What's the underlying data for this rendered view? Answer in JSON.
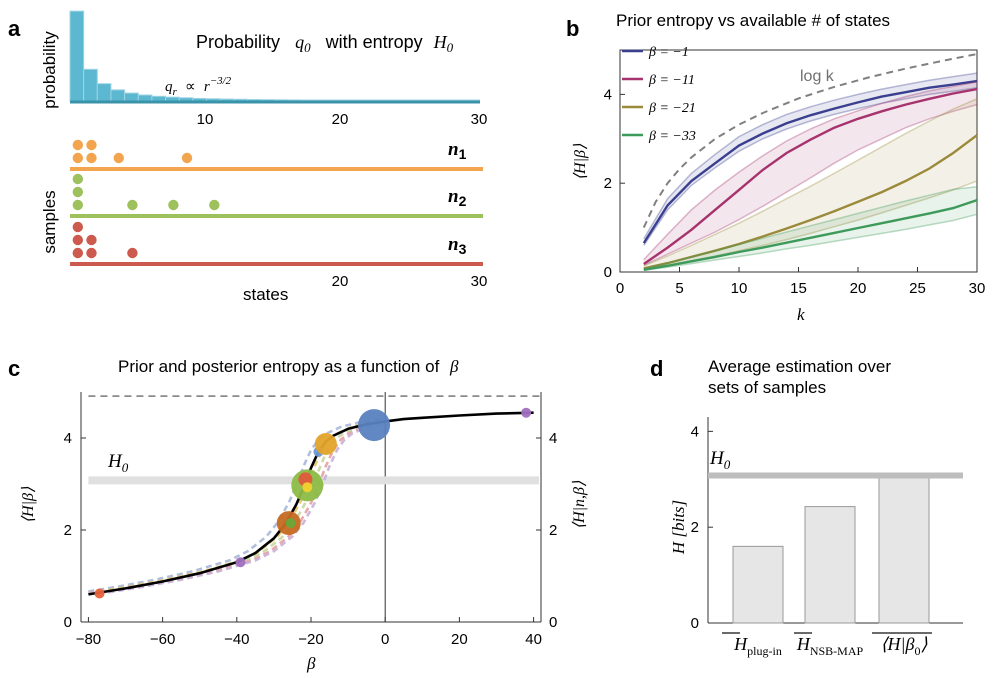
{
  "panel_labels": {
    "a": "a",
    "b": "b",
    "c": "c",
    "d": "d"
  },
  "chart_data": [
    {
      "panel": "a",
      "type": "bar",
      "title_text": "Probability",
      "title_q": "q",
      "title_q_sub": "0",
      "title_mid": "with entropy",
      "title_H": "H",
      "title_H_sub": "0",
      "annotation_q": "q",
      "annotation_q_sub": "r",
      "annotation_prop": "∝",
      "annotation_r": "r",
      "annotation_exp": "−3/2",
      "ylabel_top": "probability",
      "ylabel_bottom": "samples",
      "xlabel": "states",
      "xticks_top": [
        "10",
        "20",
        "30"
      ],
      "xticks_bottom": [
        "20",
        "30"
      ],
      "xlim": [
        0,
        30
      ],
      "colors": {
        "bars": "#5bb8d0",
        "bar_edge": "#9fd4e3",
        "axis": "#3a93a8",
        "n1": "#f2a54e",
        "n2": "#9dc15c",
        "n3": "#cc5a4e"
      },
      "values": [
        0.42,
        0.148,
        0.081,
        0.052,
        0.037,
        0.028,
        0.022,
        0.018,
        0.015,
        0.012,
        0.0105,
        0.009,
        0.008,
        0.007,
        0.0062,
        0.0056,
        0.005,
        0.0046,
        0.0042,
        0.0038,
        0.0035,
        0.0032,
        0.003,
        0.0028,
        0.0026,
        0.0024,
        0.0023,
        0.0021,
        0.002,
        0.0019
      ],
      "samples": [
        {
          "name": "n",
          "sub": "1",
          "counts": [
            [
              1,
              2
            ],
            [
              2,
              2
            ],
            [
              4,
              1
            ],
            [
              9,
              1
            ]
          ]
        },
        {
          "name": "n",
          "sub": "2",
          "counts": [
            [
              1,
              3
            ],
            [
              5,
              1
            ],
            [
              8,
              1
            ],
            [
              11,
              1
            ]
          ]
        },
        {
          "name": "n",
          "sub": "3",
          "counts": [
            [
              1,
              3
            ],
            [
              2,
              2
            ],
            [
              5,
              1
            ]
          ]
        }
      ]
    },
    {
      "panel": "b",
      "type": "line",
      "title": "Prior entropy vs available # of states",
      "xlabel": "k",
      "ylabel": "⟨H|β⟩",
      "xlim": [
        0,
        30
      ],
      "ylim": [
        0,
        5
      ],
      "xticks": [
        "0",
        "5",
        "10",
        "15",
        "20",
        "25",
        "30"
      ],
      "xtick_values": [
        0,
        5,
        10,
        15,
        20,
        25,
        30
      ],
      "yticks": [
        "0",
        "2",
        "4"
      ],
      "ytick_values": [
        0,
        2,
        4
      ],
      "log_label": "log k",
      "series": [
        {
          "name": "β = −1",
          "color": "#3a3f8f",
          "x": [
            2,
            4,
            6,
            8,
            10,
            12,
            14,
            16,
            18,
            20,
            22,
            24,
            26,
            28,
            30
          ],
          "y": [
            0.65,
            1.5,
            2.05,
            2.45,
            2.85,
            3.12,
            3.35,
            3.53,
            3.68,
            3.82,
            3.95,
            4.05,
            4.15,
            4.22,
            4.3
          ],
          "band_low": [
            0.6,
            1.4,
            1.95,
            2.35,
            2.72,
            3.0,
            3.22,
            3.4,
            3.55,
            3.68,
            3.8,
            3.9,
            4.0,
            4.07,
            4.15
          ],
          "band_high": [
            0.75,
            1.65,
            2.22,
            2.65,
            3.05,
            3.32,
            3.55,
            3.72,
            3.87,
            4.0,
            4.12,
            4.22,
            4.32,
            4.4,
            4.48
          ]
        },
        {
          "name": "β = −11",
          "color": "#a6336e",
          "x": [
            2,
            4,
            6,
            8,
            10,
            12,
            14,
            16,
            18,
            20,
            22,
            24,
            26,
            28,
            30
          ],
          "y": [
            0.18,
            0.55,
            0.95,
            1.4,
            1.85,
            2.3,
            2.68,
            2.98,
            3.25,
            3.45,
            3.62,
            3.77,
            3.9,
            4.02,
            4.12
          ],
          "band_low": [
            0.15,
            0.4,
            0.65,
            0.9,
            1.18,
            1.48,
            1.8,
            2.12,
            2.45,
            2.75,
            3.0,
            3.25,
            3.45,
            3.62,
            3.77
          ],
          "band_high": [
            0.28,
            0.85,
            1.4,
            1.85,
            2.25,
            2.62,
            2.95,
            3.22,
            3.45,
            3.63,
            3.8,
            3.95,
            4.08,
            4.18,
            4.28
          ]
        },
        {
          "name": "β = −21",
          "color": "#9b8a3a",
          "x": [
            2,
            4,
            6,
            8,
            10,
            12,
            14,
            16,
            18,
            20,
            22,
            24,
            26,
            28,
            30
          ],
          "y": [
            0.08,
            0.2,
            0.34,
            0.48,
            0.63,
            0.8,
            0.98,
            1.17,
            1.37,
            1.58,
            1.8,
            2.05,
            2.33,
            2.68,
            3.08
          ],
          "band_low": [
            0.06,
            0.15,
            0.25,
            0.36,
            0.48,
            0.6,
            0.73,
            0.87,
            1.02,
            1.17,
            1.33,
            1.5,
            1.67,
            1.85,
            2.05
          ],
          "band_high": [
            0.14,
            0.36,
            0.6,
            0.85,
            1.1,
            1.37,
            1.65,
            1.93,
            2.22,
            2.52,
            2.82,
            3.12,
            3.4,
            3.67,
            3.9
          ]
        },
        {
          "name": "β = −33",
          "color": "#3e9a5a",
          "x": [
            2,
            4,
            6,
            8,
            10,
            12,
            14,
            16,
            18,
            20,
            22,
            24,
            26,
            28,
            30
          ],
          "y": [
            0.05,
            0.14,
            0.24,
            0.34,
            0.45,
            0.55,
            0.66,
            0.77,
            0.88,
            0.99,
            1.1,
            1.21,
            1.32,
            1.44,
            1.62
          ],
          "band_low": [
            0.04,
            0.11,
            0.19,
            0.27,
            0.35,
            0.43,
            0.52,
            0.6,
            0.69,
            0.78,
            0.87,
            0.96,
            1.06,
            1.16,
            1.3
          ],
          "band_high": [
            0.07,
            0.2,
            0.34,
            0.48,
            0.62,
            0.76,
            0.9,
            1.04,
            1.18,
            1.32,
            1.46,
            1.6,
            1.73,
            1.86,
            1.92
          ]
        }
      ],
      "log_curve": {
        "x": [
          2,
          3,
          4,
          5,
          6,
          8,
          10,
          12,
          15,
          18,
          21,
          24,
          27,
          30
        ],
        "y": [
          1.0,
          1.58,
          2.0,
          2.32,
          2.58,
          3.0,
          3.32,
          3.58,
          3.91,
          4.17,
          4.39,
          4.58,
          4.75,
          4.91
        ],
        "color": "#808080"
      }
    },
    {
      "panel": "c",
      "type": "line",
      "title": "Prior and posterior entropy as a function of",
      "title_beta": "β",
      "xlabel": "β",
      "ylabel": "⟨H|β⟩",
      "ylabel_right": "⟨H|n,β⟩",
      "H0_label": "H",
      "H0_sub": "0",
      "xlim": [
        -82,
        42
      ],
      "ylim": [
        0,
        5
      ],
      "xticks": [
        "−80",
        "−60",
        "−40",
        "−20",
        "0",
        "20",
        "40"
      ],
      "xtick_values": [
        -80,
        -60,
        -40,
        -20,
        0,
        20,
        40
      ],
      "yticks": [
        "0",
        "2",
        "4"
      ],
      "ytick_values": [
        0,
        2,
        4
      ],
      "H0": 3.08,
      "max_entropy": 4.91,
      "prior": {
        "x": [
          -80,
          -70,
          -60,
          -50,
          -40,
          -35,
          -30,
          -27,
          -24,
          -22,
          -20,
          -18,
          -16,
          -14,
          -10,
          -5,
          0,
          5,
          10,
          20,
          30,
          40
        ],
        "y": [
          0.6,
          0.73,
          0.88,
          1.06,
          1.3,
          1.5,
          1.82,
          2.12,
          2.55,
          2.92,
          3.35,
          3.7,
          3.92,
          4.05,
          4.2,
          4.3,
          4.36,
          4.41,
          4.44,
          4.49,
          4.53,
          4.55
        ]
      },
      "posterior_curves": [
        {
          "color": "#aab8d8",
          "shift": -2.0
        },
        {
          "color": "#e8c46a",
          "shift": 1.0
        },
        {
          "color": "#c6d6a0",
          "shift": 2.5
        },
        {
          "color": "#e8a0a0",
          "shift": 4.0
        },
        {
          "color": "#c8b0d8",
          "shift": 5.0
        }
      ],
      "points": [
        {
          "beta": -77,
          "H": 0.62,
          "r": 5,
          "color": "#e8623a"
        },
        {
          "beta": -39,
          "H": 1.3,
          "r": 5,
          "color": "#a070c0"
        },
        {
          "beta": -26,
          "H": 2.15,
          "r": 12,
          "color": "#c56a22"
        },
        {
          "beta": -25.5,
          "H": 2.15,
          "r": 5,
          "color": "#6aa63a"
        },
        {
          "beta": -21,
          "H": 2.97,
          "r": 16,
          "color": "#8cbc46"
        },
        {
          "beta": -21.5,
          "H": 3.1,
          "r": 7,
          "color": "#e05a3a"
        },
        {
          "beta": -21,
          "H": 2.93,
          "r": 5,
          "color": "#f2d22e"
        },
        {
          "beta": -18,
          "H": 3.7,
          "r": 5,
          "color": "#6a9ad8"
        },
        {
          "beta": -16,
          "H": 3.87,
          "r": 11,
          "color": "#e3a32a"
        },
        {
          "beta": -3,
          "H": 4.28,
          "r": 16,
          "color": "#5a82c0"
        },
        {
          "beta": 38,
          "H": 4.55,
          "r": 5,
          "color": "#a070c0"
        }
      ]
    },
    {
      "panel": "d",
      "type": "bar",
      "title_line1": "Average estimation over",
      "title_line2": "sets of samples",
      "ylabel": "H [bits]",
      "ylim": [
        0,
        4.3
      ],
      "yticks": [
        "0",
        "2",
        "4"
      ],
      "ytick_values": [
        0,
        2,
        4
      ],
      "H0": 3.08,
      "H0_label": "H",
      "H0_sub": "0",
      "categories": [
        {
          "main": "H",
          "sub": "plug-in"
        },
        {
          "main": "H",
          "sub": "NSB-MAP"
        },
        {
          "main": "⟨H|β",
          "sub": "0",
          "tail": "⟩"
        }
      ],
      "values": [
        1.6,
        2.43,
        3.04
      ],
      "colors": {
        "bar": "#e6e6e6",
        "bar_edge": "#999999",
        "H0_line": "#bdbdbd"
      }
    }
  ]
}
